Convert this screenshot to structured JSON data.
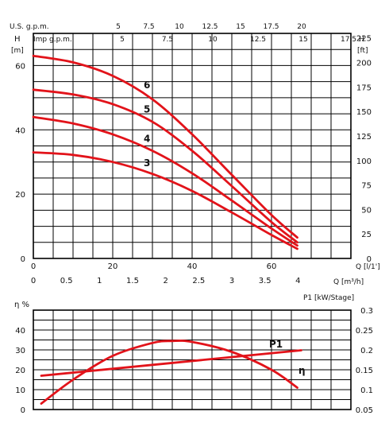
{
  "chart_data": [
    {
      "type": "line",
      "title": "",
      "top_axes": [
        {
          "label": "U.S. g.p.m.",
          "ticks": [
            "5",
            "7.5",
            "10",
            "12.5",
            "15",
            "17.5",
            "20"
          ]
        },
        {
          "label": "Imp g.p.m.",
          "ticks": [
            "5",
            "7.5",
            "10",
            "12.5",
            "15",
            "17.5"
          ],
          "end_label": "H"
        }
      ],
      "left_axis": {
        "unit": "H",
        "unit2": "[m]",
        "ticks": [
          "0",
          "20",
          "40",
          "60"
        ],
        "ylim": [
          0,
          70
        ]
      },
      "right_axis": {
        "unit": "[ft]",
        "ticks": [
          "0",
          "25",
          "50",
          "75",
          "100",
          "125",
          "150",
          "175",
          "200",
          "225"
        ]
      },
      "x_axis_1": {
        "label": "Q [l/1']",
        "ticks": [
          "0",
          "20",
          "40",
          "60"
        ],
        "xlim": [
          0,
          80
        ]
      },
      "x_axis_2": {
        "label": "Q [m³/h]",
        "ticks": [
          "0",
          "0.5",
          "1",
          "1.5",
          "2",
          "2.5",
          "3",
          "3.5",
          "4"
        ]
      },
      "series": [
        {
          "name": "3",
          "x": [
            0,
            10,
            20,
            30,
            40,
            50,
            60,
            66.5
          ],
          "y": [
            33,
            32.2,
            30,
            26.3,
            21,
            14.3,
            7.3,
            3
          ]
        },
        {
          "name": "4",
          "x": [
            0,
            10,
            20,
            30,
            40,
            50,
            60,
            66.5
          ],
          "y": [
            44,
            42,
            38.6,
            33.5,
            26.5,
            18,
            9.3,
            4
          ]
        },
        {
          "name": "5",
          "x": [
            0,
            10,
            20,
            30,
            40,
            50,
            60,
            66.5
          ],
          "y": [
            52.5,
            51,
            48,
            42.5,
            33.5,
            22.5,
            11.3,
            5
          ]
        },
        {
          "name": "6",
          "x": [
            0,
            10,
            20,
            30,
            40,
            50,
            60,
            66.5
          ],
          "y": [
            63,
            61,
            56.8,
            49.5,
            38.6,
            26,
            13.5,
            6.5
          ]
        }
      ]
    },
    {
      "type": "line",
      "title": "",
      "left_axis": {
        "label": "η %",
        "ticks": [
          "0",
          "10",
          "20",
          "30",
          "40"
        ],
        "ylim": [
          0,
          50
        ]
      },
      "right_axis": {
        "label": "P1 [kW/Stage]",
        "ticks": [
          "0.05",
          "0.1",
          "0.15",
          "0.2",
          "0.25",
          "0.3"
        ],
        "ylim": [
          0.05,
          0.3
        ]
      },
      "xlim": [
        0,
        80
      ],
      "series": [
        {
          "name": "η",
          "axis": "left",
          "x": [
            2,
            10,
            20,
            30,
            35,
            40,
            50,
            60,
            66.5
          ],
          "y": [
            3,
            15,
            27,
            33.5,
            34.5,
            34,
            29,
            20,
            11
          ]
        },
        {
          "name": "P1",
          "axis": "right",
          "x": [
            2,
            67.5
          ],
          "y": [
            0.135,
            0.199
          ]
        }
      ]
    }
  ]
}
